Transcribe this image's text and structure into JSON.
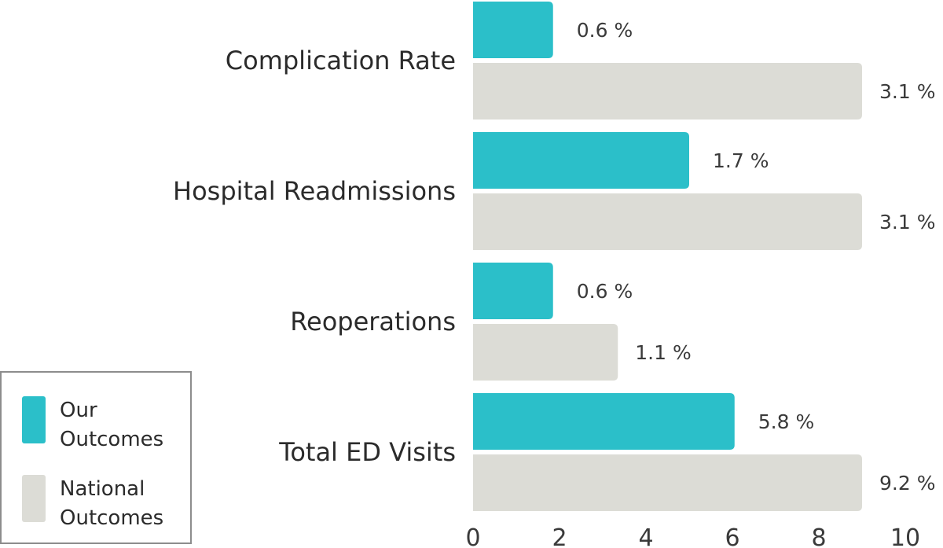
{
  "colors": {
    "ours": "#2bbfc9",
    "national": "#dcdcd6"
  },
  "legend": {
    "ours": "Our\nOutcomes",
    "national": "National\nOutcomes"
  },
  "chart_data": {
    "type": "bar",
    "orientation": "horizontal",
    "categories": [
      "Complication Rate",
      "Hospital Readmissions",
      "Reoperations",
      "Total ED Visits"
    ],
    "series": [
      {
        "name": "Our Outcomes",
        "values": [
          0.6,
          1.7,
          0.6,
          5.8
        ],
        "labels": [
          "0.6 %",
          "1.7 %",
          "0.6 %",
          "5.8 %"
        ]
      },
      {
        "name": "National Outcomes",
        "values": [
          3.1,
          3.1,
          1.1,
          9.2
        ],
        "labels": [
          "3.1 %",
          "3.1 %",
          "1.1 %",
          "9.2 %"
        ]
      }
    ],
    "bar_lengths": {
      "Our Outcomes": [
        1.85,
        5.0,
        1.85,
        6.05
      ],
      "National Outcomes": [
        9.0,
        9.0,
        3.35,
        9.0
      ]
    },
    "xlim": [
      0,
      10
    ],
    "xticks": [
      "0",
      "2",
      "4",
      "6",
      "8",
      "10"
    ],
    "legend_position": "bottom-left",
    "grid": false
  }
}
